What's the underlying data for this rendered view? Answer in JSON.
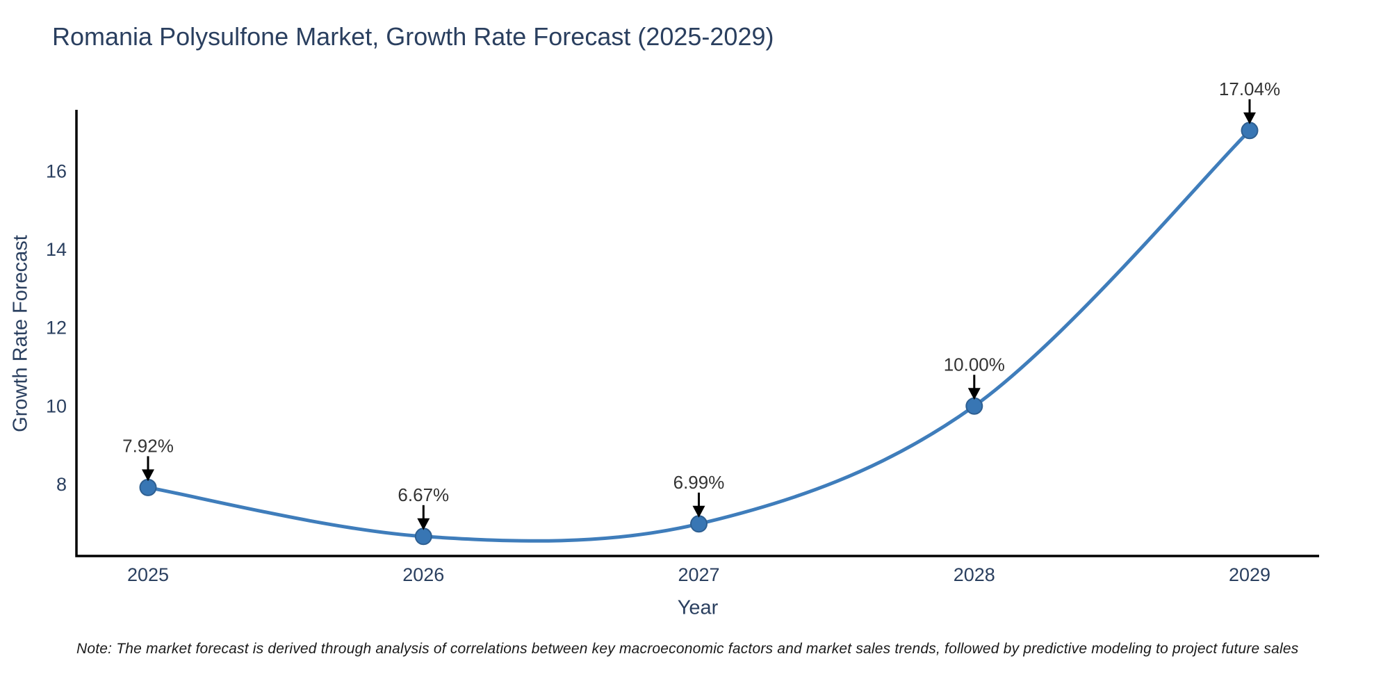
{
  "title": "Romania Polysulfone Market, Growth Rate Forecast (2025-2029)",
  "note": "Note: The market forecast is derived through analysis of correlations between key macroeconomic factors and market sales trends, followed by predictive modeling to project future sales",
  "chart_data": {
    "type": "line",
    "title": "Romania Polysulfone Market, Growth Rate Forecast (2025-2029)",
    "xlabel": "Year",
    "ylabel": "Growth Rate Forecast",
    "x": [
      2025,
      2026,
      2027,
      2028,
      2029
    ],
    "y": [
      7.92,
      6.67,
      6.99,
      10.0,
      17.04
    ],
    "point_labels": [
      "7.92%",
      "6.67%",
      "6.99%",
      "10.00%",
      "17.04%"
    ],
    "x_tick_labels": [
      "2025",
      "2026",
      "2027",
      "2028",
      "2029"
    ],
    "y_ticks": [
      8,
      10,
      12,
      14,
      16
    ],
    "xlim": [
      2025,
      2029
    ],
    "ylim": [
      6.17,
      17.57
    ],
    "grid": false,
    "legend": "none",
    "line_shape": "spline",
    "colors": {
      "line": "#3f7dbb",
      "marker_fill": "#3876b4",
      "marker_edge": "#2e5f91",
      "axis": "#000000",
      "arrow": "#000000",
      "title_text": "#2a3f5f",
      "tick_text": "#2a3f5f",
      "annotation_text": "#333333",
      "background": "#ffffff"
    }
  }
}
